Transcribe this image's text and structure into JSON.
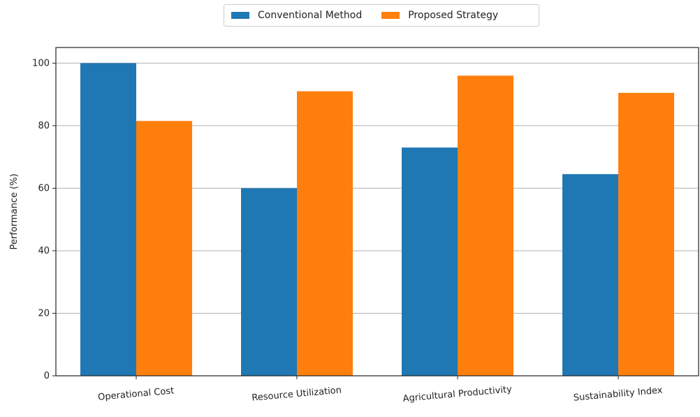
{
  "chart_data": {
    "type": "bar",
    "categories": [
      "Operational Cost",
      "Resource Utilization",
      "Agricultural Productivity",
      "Sustainability Index"
    ],
    "series": [
      {
        "name": "Conventional Method",
        "values": [
          100,
          60,
          73,
          64.5
        ]
      },
      {
        "name": "Proposed Strategy",
        "values": [
          81.5,
          91,
          96,
          90.5
        ]
      }
    ],
    "title": "",
    "xlabel": "",
    "ylabel": "Performance (%)",
    "ylim": [
      0,
      105
    ],
    "yticks": [
      "0",
      "20",
      "40",
      "60",
      "80",
      "100"
    ],
    "grid": "horizontal",
    "legend_position": "top-center",
    "colors": [
      "#1f77b4",
      "#ff7f0e"
    ]
  }
}
